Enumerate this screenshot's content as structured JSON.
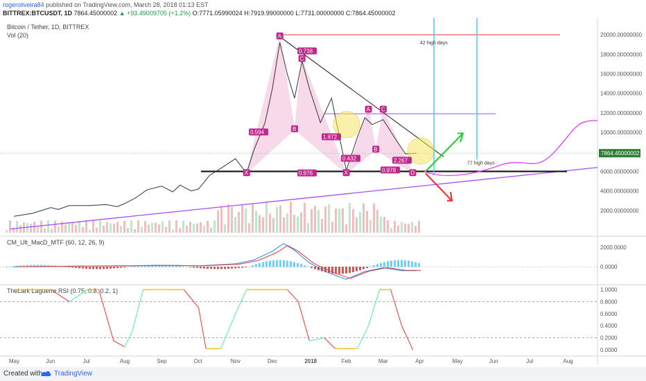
{
  "header": {
    "user": "rogeroliveira84",
    "published": "published on TradingView.com, March 28, 2018 01:13 EST",
    "symbol": "BITTREX:BTCUSDT, 1D",
    "last": "7864.45000002",
    "change": "▲ +93.49009705 (+1.2%)",
    "open": "O:7771.05990024",
    "high": "H:7919.99000000",
    "low": "L:7731.00000000",
    "close": "C:7864.45000002"
  },
  "footer": {
    "created": "Created with",
    "brand": "TradingView"
  },
  "colors": {
    "bg": "#ffffff",
    "pink": "#e879b4",
    "purple": "#a64dff",
    "red": "#e53935",
    "green": "#2ecc40",
    "cyan": "#4dd0e1",
    "yellow": "#f5e663"
  },
  "chart_data": [
    {
      "type": "line",
      "title": "Bitcoin / Tether, 1D, BITTREX",
      "volume_label": "Vol (20)",
      "x_ticks": [
        "May",
        "Jun",
        "Jul",
        "Aug",
        "Sep",
        "Oct",
        "Nov",
        "Dec",
        "2018",
        "Feb",
        "Mar",
        "Apr",
        "May",
        "Jun",
        "Jul",
        "Aug"
      ],
      "y_ticks": [
        "20000.00000000",
        "18000.00000000",
        "16000.00000000",
        "14000.00000000",
        "12000.00000000",
        "10000.00000000",
        "8000.00000000",
        "6000.00000000",
        "4000.00000000",
        "2000.00000000"
      ],
      "ylim": [
        0,
        21000
      ],
      "last_price_label": "7864.45000002",
      "price": {
        "x": [
          0,
          0.5,
          1,
          1.2,
          1.5,
          2,
          2.5,
          2.8,
          3,
          3.3,
          3.6,
          4,
          4.3,
          4.5,
          4.8,
          5,
          5.3,
          5.6,
          6,
          6.3,
          6.5,
          6.8,
          7,
          7.2,
          7.4,
          7.6,
          7.8,
          8,
          8.3,
          8.6,
          9,
          9.3,
          9.5,
          9.7,
          10,
          10.3,
          10.6,
          10.9
        ],
        "y": [
          1400,
          1700,
          2300,
          2100,
          2500,
          2500,
          2600,
          2400,
          2700,
          3300,
          4100,
          4500,
          3900,
          4600,
          4000,
          4200,
          5600,
          6300,
          7300,
          5800,
          8200,
          11000,
          14500,
          19200,
          16000,
          13500,
          17300,
          14500,
          11000,
          13500,
          6100,
          9500,
          11500,
          10800,
          11300,
          9500,
          7800,
          7864
        ]
      },
      "harmonic_points": [
        {
          "label": "X",
          "x": 6.3,
          "y": 5800
        },
        {
          "label": "A",
          "x": 7.2,
          "y": 19800
        },
        {
          "label": "B",
          "x": 7.6,
          "y": 10300
        },
        {
          "label": "C",
          "x": 7.8,
          "y": 17500
        },
        {
          "label": "X",
          "x": 9.0,
          "y": 5800
        },
        {
          "label": "A",
          "x": 9.6,
          "y": 12300
        },
        {
          "label": "B",
          "x": 9.8,
          "y": 8200
        },
        {
          "label": "C",
          "x": 10.0,
          "y": 12300
        },
        {
          "label": "D",
          "x": 10.8,
          "y": 5800
        }
      ],
      "ratios": [
        "0.738",
        "0.594",
        "1.872",
        "0.976",
        "0.432",
        "2.267",
        "0.978"
      ],
      "annotations": [
        "42 high days",
        "77 high days"
      ]
    },
    {
      "type": "line",
      "title": "CM_Ult_MacD_MTF (60, 12, 26, 9)",
      "y_ticks": [
        "2000.0000",
        "0.0000"
      ],
      "ylim": [
        -1500,
        2800
      ],
      "macd": {
        "x": [
          0,
          2,
          3,
          4,
          5,
          6,
          6.5,
          7,
          7.3,
          7.6,
          8,
          8.5,
          9,
          9.5,
          10,
          10.5,
          10.9
        ],
        "y": [
          0,
          80,
          100,
          150,
          100,
          300,
          700,
          1600,
          2400,
          1700,
          400,
          -600,
          -1300,
          -500,
          -100,
          -400,
          -400
        ]
      }
    },
    {
      "type": "line",
      "title": "TheLark Laguerre RSI (0.75, 0.8, 0.2, 1)",
      "y_ticks": [
        "1.0000",
        "0.8000",
        "0.6000",
        "0.4000",
        "0.2000",
        "0.0000"
      ],
      "ylim": [
        0,
        1
      ],
      "rsi": {
        "x": [
          0,
          0.6,
          1,
          1.5,
          2,
          2.3,
          2.7,
          3,
          3.2,
          3.5,
          3.8,
          4,
          4.3,
          4.6,
          5,
          5.2,
          5.6,
          6,
          6.3,
          6.6,
          7,
          7.4,
          7.7,
          8,
          8.4,
          8.7,
          9,
          9.3,
          9.6,
          9.9,
          10.2,
          10.5,
          10.8
        ],
        "y": [
          1,
          1,
          1,
          0.8,
          1,
          1,
          0.15,
          0.05,
          0.3,
          1,
          1,
          1,
          1,
          1,
          0.7,
          0.02,
          0.02,
          0.6,
          1,
          1,
          1,
          1,
          0.8,
          0.15,
          0.2,
          0.02,
          0.02,
          0.02,
          0.4,
          1,
          1,
          0.4,
          0.0
        ]
      }
    }
  ]
}
